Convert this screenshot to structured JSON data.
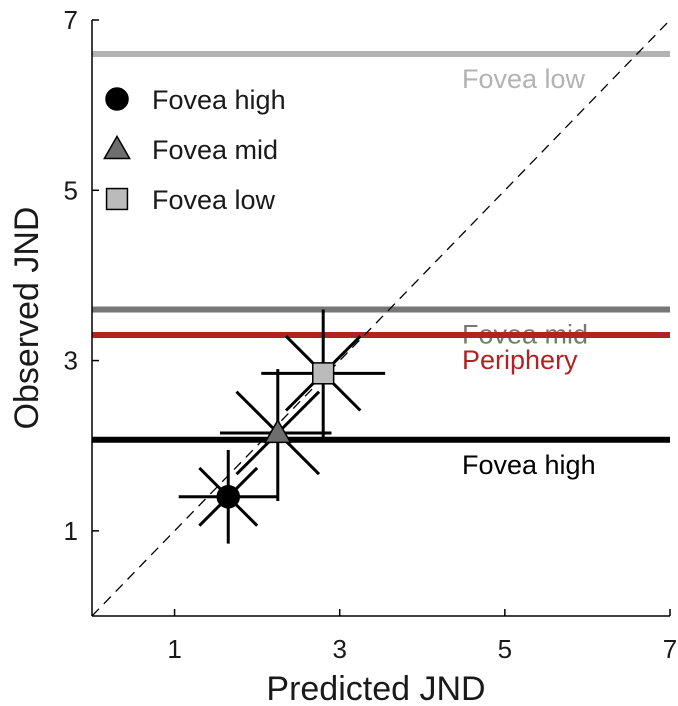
{
  "chart_data": {
    "type": "scatter",
    "title": "",
    "xlabel": "Predicted JND",
    "ylabel": "Observed JND",
    "xlim": [
      0,
      7
    ],
    "ylim": [
      0,
      7
    ],
    "xticks": [
      1,
      3,
      5,
      7
    ],
    "yticks": [
      1,
      3,
      5,
      7
    ],
    "xtick_labels": [
      "1",
      "3",
      "5",
      "7"
    ],
    "ytick_labels": [
      "1",
      "3",
      "5",
      "7"
    ],
    "grid": false,
    "identity_line": true,
    "legend_position": "top-left",
    "series": [
      {
        "name": "Fovea high",
        "marker": "circle",
        "color": "#000000",
        "x": 1.65,
        "y": 1.4,
        "x_err": [
          1.05,
          2.25
        ],
        "y_err": [
          0.85,
          1.95
        ],
        "diag_len": 0.35
      },
      {
        "name": "Fovea mid",
        "marker": "triangle",
        "color": "#6e6e6e",
        "x": 2.25,
        "y": 2.15,
        "x_err": [
          1.55,
          2.9
        ],
        "y_err": [
          1.35,
          2.9
        ],
        "diag_len": 0.5
      },
      {
        "name": "Fovea low",
        "marker": "square",
        "color": "#bbbbbb",
        "x": 2.8,
        "y": 2.85,
        "x_err": [
          2.05,
          3.55
        ],
        "y_err": [
          2.1,
          3.6
        ],
        "diag_len": 0.45
      }
    ],
    "reference_lines": [
      {
        "label": "Fovea low",
        "y": 6.6,
        "color": "#b3b3b3"
      },
      {
        "label": "Fovea mid",
        "y": 3.6,
        "color": "#777777"
      },
      {
        "label": "Periphery",
        "y": 3.3,
        "color": "#b22222"
      },
      {
        "label": "Fovea high",
        "y": 2.07,
        "color": "#000000"
      }
    ]
  }
}
